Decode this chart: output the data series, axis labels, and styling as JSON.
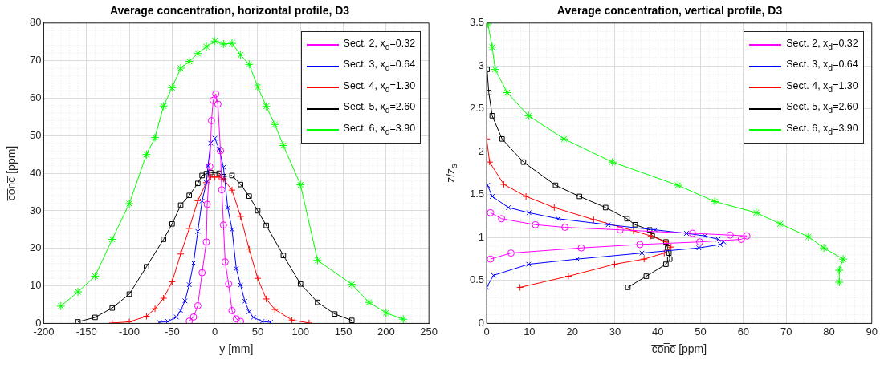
{
  "chart_data": [
    {
      "type": "line",
      "title": "Average concentration, horizontal profile, D3",
      "xlabel": "y [mm]",
      "ylabel": "c̅o̅n̅c̅ [ppm]",
      "xlim": [
        -200,
        250
      ],
      "xticks": [
        -200,
        -150,
        -100,
        -50,
        0,
        50,
        100,
        150,
        200,
        250
      ],
      "ylim": [
        0,
        80
      ],
      "yticks": [
        0,
        10,
        20,
        30,
        40,
        50,
        60,
        70,
        80
      ],
      "grid": true,
      "legend": "top right",
      "series": [
        {
          "name": "Sect. 2, x$_{d}$=0.32",
          "color": "#ff00ff",
          "marker": "circle",
          "x": [
            -30,
            -25,
            -20,
            -15,
            -10,
            -9,
            -6,
            -4,
            -2,
            1,
            3.5,
            6.5,
            8,
            10,
            12,
            16,
            20,
            25,
            30
          ],
          "values": [
            0.6,
            1.7,
            4.7,
            13.5,
            21.7,
            31.7,
            41.8,
            54,
            59.4,
            61.1,
            58.4,
            46,
            35.6,
            26.2,
            16.4,
            10.5,
            3.4,
            1.2,
            0.5
          ]
        },
        {
          "name": "Sect. 3, x$_{d}$=0.64",
          "color": "#0000ff",
          "marker": "x",
          "x": [
            -65,
            -55,
            -45,
            -40,
            -35,
            -30,
            -25,
            -20,
            -15,
            -10,
            -8,
            -5,
            0,
            5,
            10,
            15,
            20,
            25,
            30,
            35,
            40,
            45,
            55,
            65
          ],
          "values": [
            0.3,
            0.5,
            1.7,
            3.4,
            6,
            10.3,
            16.1,
            24.5,
            32.6,
            37.5,
            42,
            48,
            49.3,
            46.4,
            41.6,
            30.8,
            25,
            14.6,
            10.2,
            5.9,
            3.1,
            1.6,
            0.5,
            0.3
          ]
        },
        {
          "name": "Sect. 4, x$_{d}$=1.30",
          "color": "#ff0000",
          "marker": "plus",
          "x": [
            -120,
            -100,
            -80,
            -70,
            -60,
            -50,
            -40,
            -30,
            -20,
            -10,
            -5,
            0,
            5,
            10,
            20,
            30,
            40,
            50,
            60,
            70,
            90,
            110
          ],
          "values": [
            0.1,
            0.4,
            1.9,
            3.9,
            6.7,
            11.1,
            18.5,
            25.3,
            32.7,
            37.5,
            39,
            39,
            39,
            38.5,
            35.5,
            28.5,
            19.8,
            12,
            6.5,
            3.7,
            0.9,
            0.1
          ]
        },
        {
          "name": "Sect. 5, x$_{d}$=2.60",
          "color": "#000000",
          "marker": "square",
          "x": [
            -160,
            -140,
            -120,
            -100,
            -80,
            -60,
            -50,
            -40,
            -30,
            -20,
            -15,
            -10,
            -5,
            5,
            10,
            20,
            30,
            40,
            50,
            60,
            80,
            100,
            120,
            140,
            160
          ],
          "values": [
            0.4,
            1.6,
            4.1,
            7.8,
            15.1,
            22.4,
            26.5,
            31.5,
            34.1,
            37.3,
            39.4,
            39.9,
            40.2,
            40,
            39.1,
            39.4,
            37,
            33.9,
            30,
            26.1,
            18.1,
            10.5,
            5.6,
            2.5,
            0.8
          ]
        },
        {
          "name": "Sect. 6, x$_{d}$=3.90",
          "color": "#00ff00",
          "marker": "cross",
          "x": [
            -180,
            -160,
            -140,
            -120,
            -100,
            -80,
            -70,
            -60,
            -50,
            -40,
            -30,
            -20,
            -10,
            0,
            10,
            20,
            30,
            40,
            50,
            60,
            70,
            80,
            100,
            120,
            160,
            180,
            200,
            220
          ],
          "values": [
            4.6,
            8.4,
            12.6,
            22.4,
            31.9,
            45,
            49.5,
            57.9,
            62.8,
            68,
            69.8,
            71.9,
            73.7,
            75.2,
            74.4,
            74.6,
            71.5,
            69,
            63,
            57.8,
            53,
            47.4,
            36.9,
            16.8,
            10.4,
            5.6,
            2.8,
            1.1
          ]
        }
      ]
    },
    {
      "type": "line",
      "title": "Average concentration, vertical profile, D3",
      "xlabel": "c̅o̅n̅c̅ [ppm]",
      "ylabel": "z/z$_{s}$",
      "xlim": [
        0,
        90
      ],
      "xticks": [
        0,
        10,
        20,
        30,
        40,
        50,
        60,
        70,
        80,
        90
      ],
      "ylim": [
        0,
        3.5
      ],
      "yticks": [
        0,
        0.5,
        1,
        1.5,
        2,
        2.5,
        3,
        3.5
      ],
      "grid": true,
      "legend": "top right",
      "series": [
        {
          "name": "Sect. 2, x$_{d}$=0.32",
          "color": "#ff00ff",
          "marker": "circle",
          "x": [
            0.9,
            5.7,
            22.1,
            35.8,
            49.8,
            59.5,
            60.8,
            56.9,
            48.1,
            31.2,
            18.3,
            11.4,
            3.5,
            0.9
          ],
          "values": [
            0.75,
            0.82,
            0.88,
            0.92,
            0.95,
            0.98,
            1.02,
            1.03,
            1.05,
            1.09,
            1.12,
            1.15,
            1.22,
            1.29
          ]
        },
        {
          "name": "Sect. 3, x$_{d}$=0.64",
          "color": "#0000ff",
          "marker": "x",
          "x": [
            0,
            1.6,
            9.8,
            21.2,
            36.3,
            49.6,
            54.6,
            55.4,
            54.1,
            51,
            46.7,
            39.4,
            28.4,
            16.7,
            9.9,
            5.1,
            1.3,
            0.2
          ],
          "values": [
            0.42,
            0.56,
            0.69,
            0.75,
            0.82,
            0.88,
            0.92,
            0.95,
            0.98,
            1.02,
            1.05,
            1.09,
            1.15,
            1.22,
            1.29,
            1.35,
            1.48,
            1.61
          ]
        },
        {
          "name": "Sect. 4, x$_{d}$=1.30",
          "color": "#ff0000",
          "marker": "plus",
          "x": [
            7.8,
            19.1,
            29.9,
            36.8,
            41.5,
            43.1,
            41.9,
            38.4,
            34.3,
            25,
            15.8,
            9.2,
            4,
            0.7,
            0
          ],
          "values": [
            0.42,
            0.55,
            0.69,
            0.75,
            0.82,
            0.89,
            0.95,
            1.02,
            1.08,
            1.21,
            1.35,
            1.48,
            1.62,
            1.88,
            2.15
          ]
        },
        {
          "name": "Sect. 5, x$_{d}$=2.60",
          "color": "#000000",
          "marker": "square",
          "x": [
            33,
            37.3,
            41.9,
            42.8,
            42.6,
            42.3,
            41.9,
            38.7,
            38.1,
            34.7,
            32.8,
            27.8,
            21.7,
            16.1,
            8.6,
            3.6,
            1.3,
            0.5,
            0.1
          ],
          "values": [
            0.42,
            0.55,
            0.69,
            0.75,
            0.82,
            0.88,
            0.95,
            1.02,
            1.09,
            1.15,
            1.22,
            1.35,
            1.48,
            1.61,
            1.88,
            2.15,
            2.42,
            2.69,
            2.96
          ]
        },
        {
          "name": "Sect. 6, x$_{d}$=3.90",
          "color": "#00ff00",
          "marker": "cross",
          "x": [
            82.4,
            82.4,
            83.3,
            78.8,
            75.2,
            68.6,
            63,
            53.3,
            44.7,
            29.4,
            18.1,
            9.8,
            4.8,
            2,
            1.3,
            0.3
          ],
          "values": [
            0.48,
            0.62,
            0.75,
            0.88,
            1.01,
            1.16,
            1.29,
            1.42,
            1.61,
            1.88,
            2.15,
            2.42,
            2.69,
            2.96,
            3.22,
            3.49
          ]
        }
      ]
    }
  ]
}
